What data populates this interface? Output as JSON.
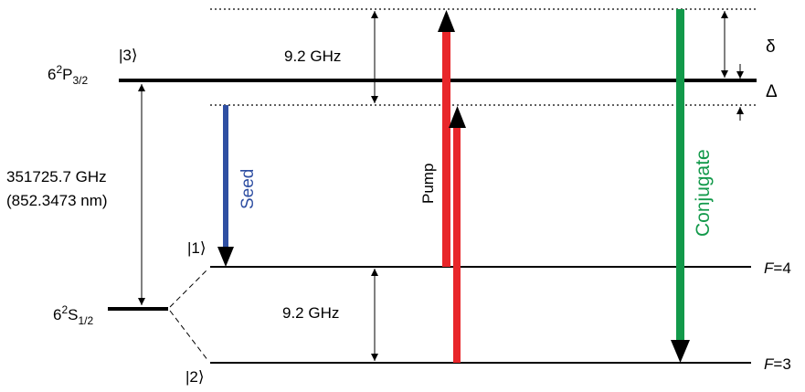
{
  "states": {
    "upper": {
      "ket": "|3⟩",
      "term": {
        "prefix": "6",
        "sup": "2",
        "main": "P",
        "sub": "3/2"
      }
    },
    "ground": {
      "term": {
        "prefix": "6",
        "sup": "2",
        "main": "S",
        "sub": "1/2"
      }
    },
    "ground_f4": {
      "ket": "|1⟩",
      "f_label": {
        "italic": "F",
        "rest": "=4"
      }
    },
    "ground_f3": {
      "ket": "|2⟩",
      "f_label": {
        "italic": "F",
        "rest": "=3"
      }
    }
  },
  "transition": {
    "frequency": "351725.7 GHz",
    "wavelength": "(852.3473 nm)"
  },
  "splittings": {
    "upper": "9.2 GHz",
    "ground": "9.2 GHz"
  },
  "detunings": {
    "delta_small": "δ",
    "delta_large": "Δ"
  },
  "beams": [
    {
      "name": "Seed",
      "color": "#2f4fa2",
      "direction": "down"
    },
    {
      "name": "Pump",
      "color": "#e8262a",
      "direction": "up"
    },
    {
      "name": "Conjugate",
      "color": "#12994a",
      "direction": "down"
    }
  ],
  "colors": {
    "seed": "#2f4fa2",
    "pump": "#e8262a",
    "conjugate": "#12994a",
    "levels": "#000000"
  }
}
